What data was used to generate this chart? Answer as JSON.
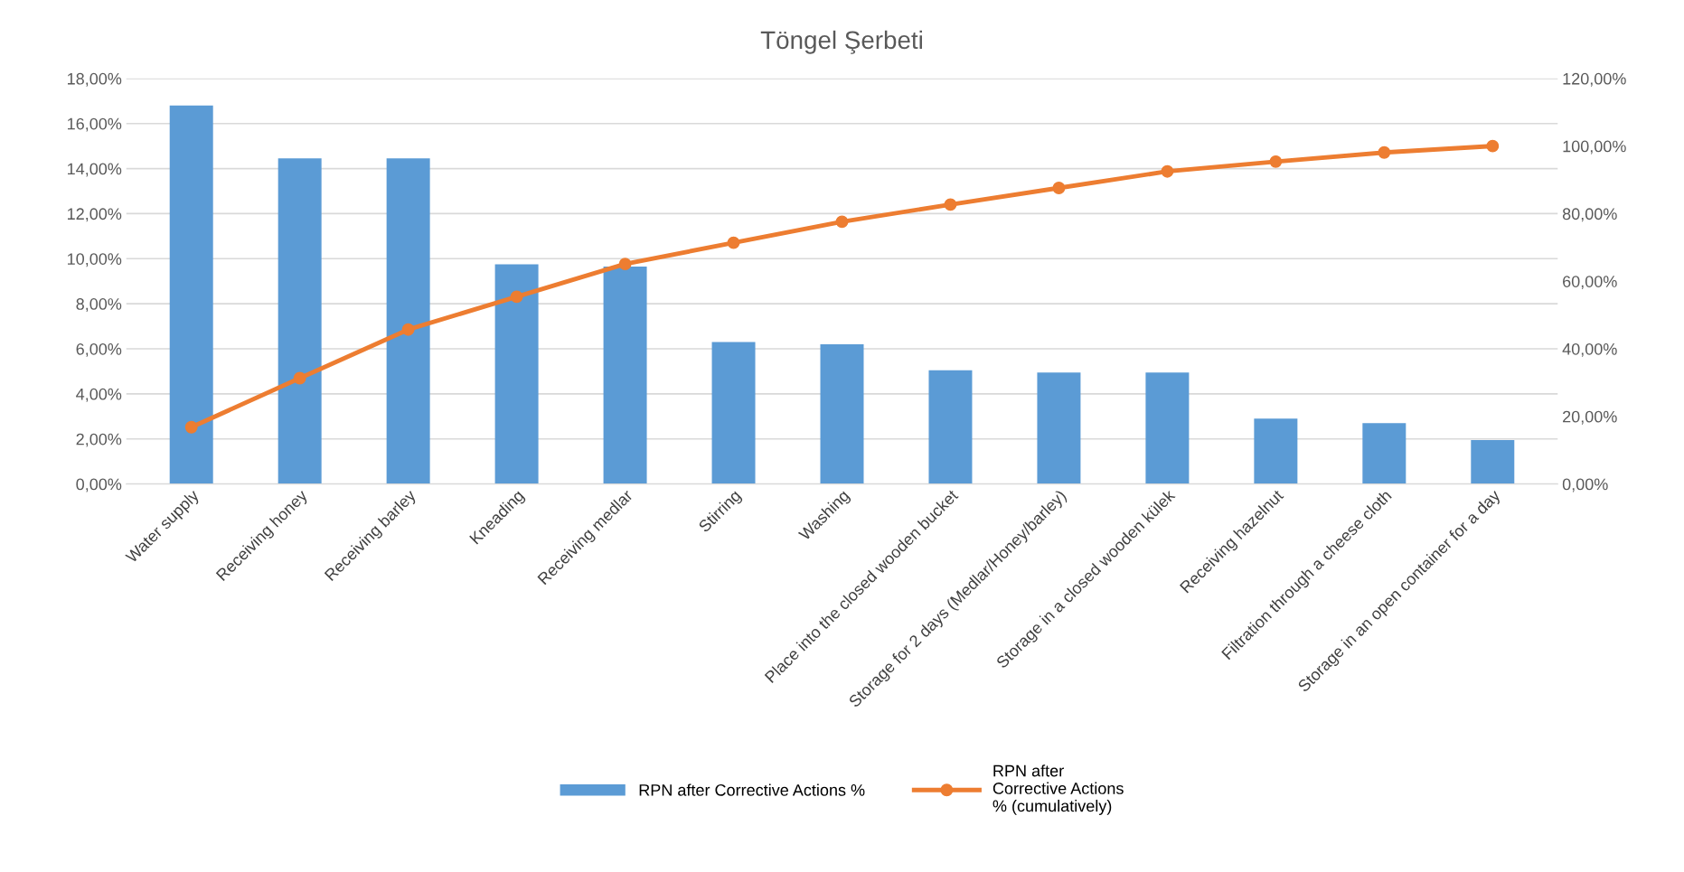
{
  "chart_data": {
    "type": "bar",
    "title": "Töngel Şerbeti",
    "categories": [
      "Water supply",
      "Receiving honey",
      "Receiving barley",
      "Kneading",
      "Receiving medlar",
      "Stirring",
      "Washing",
      "Place into the closed wooden bucket",
      "Storage for 2 days (Medlar/Honey/barley)",
      "Storage in a closed wooden külek",
      "Receiving hazelnut",
      "Filtration through a cheese cloth",
      "Storage in an open container for a day"
    ],
    "series": [
      {
        "name": "RPN after Corrective Actions %",
        "color": "#5b9bd5",
        "values": [
          16.8,
          14.45,
          14.45,
          9.75,
          9.65,
          6.3,
          6.2,
          5.05,
          4.95,
          4.95,
          2.9,
          2.7,
          1.95
        ]
      },
      {
        "name": "RPN after\nCorrective Actions\n% (cumulatively)",
        "type": "line",
        "axis": "y2",
        "color": "#ed7d31",
        "marker": "circle",
        "values": [
          16.8,
          31.3,
          45.7,
          55.4,
          65.1,
          71.4,
          77.6,
          82.7,
          87.6,
          92.5,
          95.4,
          98.1,
          100.0
        ]
      }
    ],
    "ylim": [
      0,
      18
    ],
    "yticks": [
      {
        "value": 0,
        "label": "0,00%"
      },
      {
        "value": 2,
        "label": "2,00%"
      },
      {
        "value": 4,
        "label": "4,00%"
      },
      {
        "value": 6,
        "label": "6,00%"
      },
      {
        "value": 8,
        "label": "8,00%"
      },
      {
        "value": 10,
        "label": "10,00%"
      },
      {
        "value": 12,
        "label": "12,00%"
      },
      {
        "value": 14,
        "label": "14,00%"
      },
      {
        "value": 16,
        "label": "16,00%"
      },
      {
        "value": 18,
        "label": "18,00%"
      }
    ],
    "y2lim": [
      0,
      120
    ],
    "y2ticks": [
      {
        "value": 0,
        "label": "0,00%"
      },
      {
        "value": 20,
        "label": "20,00%"
      },
      {
        "value": 40,
        "label": "40,00%"
      },
      {
        "value": 60,
        "label": "60,00%"
      },
      {
        "value": 80,
        "label": "80,00%"
      },
      {
        "value": 100,
        "label": "100,00%"
      },
      {
        "value": 120,
        "label": "120,00%"
      }
    ],
    "grid": "y",
    "legend": "bottom"
  }
}
